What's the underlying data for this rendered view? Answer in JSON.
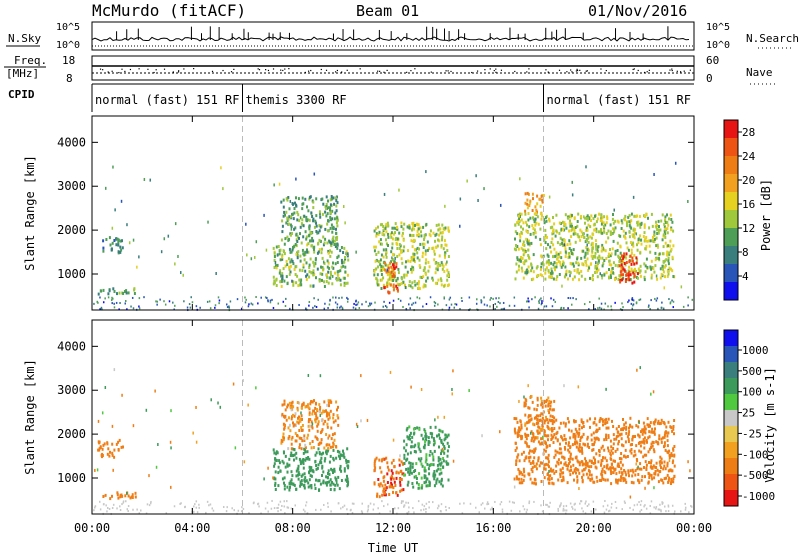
{
  "header": {
    "station": "McMurdo (fitACF)",
    "beam": "Beam 01",
    "date": "01/Nov/2016"
  },
  "aux_panels": {
    "nsky_label": "N.Sky",
    "nsky_ticks": [
      "10^5",
      "10^0"
    ],
    "nsearch_label": "N.Search",
    "nsearch_ticks": [
      "10^5",
      "10^0"
    ],
    "freq_label": "Freq.",
    "freq_unit": "[MHz]",
    "freq_ticks": [
      "18",
      "8"
    ],
    "nave_label": "Nave",
    "nave_ticks": [
      "60",
      "0"
    ],
    "cpid_label": "CPID"
  },
  "cpid_segments": [
    {
      "label": "normal (fast) 151 RF",
      "start_h": 0,
      "end_h": 6
    },
    {
      "label": "themis 3300 RF",
      "start_h": 6,
      "end_h": 18
    },
    {
      "label": "normal (fast) 151 RF",
      "start_h": 18,
      "end_h": 24
    }
  ],
  "x_axis": {
    "label": "Time UT",
    "ticks": [
      "00:00",
      "04:00",
      "08:00",
      "12:00",
      "16:00",
      "20:00",
      "00:00"
    ],
    "tick_hours": [
      0,
      4,
      8,
      12,
      16,
      20,
      24
    ]
  },
  "colors": {
    "power_scale": [
      "#1010ee",
      "#2a55b8",
      "#3a7e7e",
      "#4f9e58",
      "#9fc83c",
      "#e6d020",
      "#f2a020",
      "#ef7d15",
      "#ee5515",
      "#e81515"
    ],
    "velocity_scale": [
      "#e81515",
      "#ee5515",
      "#ef7d15",
      "#f2a020",
      "#e8c850",
      "#c8c8c8",
      "#50c840",
      "#3c9a5a",
      "#3a7e7e",
      "#2a55b8",
      "#1010ee"
    ]
  },
  "chart_data": [
    {
      "type": "heatmap",
      "title": "",
      "xlabel": "",
      "ylabel": "Slant Range [km]",
      "yticks": [
        "1000",
        "2000",
        "3000",
        "4000"
      ],
      "ylim": [
        180,
        4600
      ],
      "xlim_hours": [
        0,
        24
      ],
      "colorbar": {
        "label": "Power [dB]",
        "ticks": [
          "4",
          "8",
          "12",
          "16",
          "20",
          "24",
          "28"
        ],
        "range": [
          0,
          30
        ]
      },
      "echo_regions": [
        {
          "t": [
            0.4,
            1.2
          ],
          "r": [
            1500,
            1900
          ],
          "value": 8
        },
        {
          "t": [
            0.2,
            1.8
          ],
          "r": [
            550,
            700
          ],
          "value": 10
        },
        {
          "t": [
            7.2,
            10.2
          ],
          "r": [
            750,
            1700
          ],
          "value": 12
        },
        {
          "t": [
            7.5,
            9.8
          ],
          "r": [
            1700,
            2800
          ],
          "value": 10
        },
        {
          "t": [
            11.2,
            14.2
          ],
          "r": [
            700,
            2200
          ],
          "value": 14
        },
        {
          "t": [
            11.6,
            12.2
          ],
          "r": [
            600,
            1300
          ],
          "value": 24
        },
        {
          "t": [
            16.8,
            23.2
          ],
          "r": [
            900,
            2400
          ],
          "value": 14
        },
        {
          "t": [
            21.0,
            21.8
          ],
          "r": [
            800,
            1500
          ],
          "value": 28
        },
        {
          "t": [
            17.2,
            18.0
          ],
          "r": [
            2400,
            2900
          ],
          "value": 20
        }
      ]
    },
    {
      "type": "heatmap",
      "title": "",
      "xlabel": "Time UT",
      "ylabel": "Slant Range [km]",
      "yticks": [
        "1000",
        "2000",
        "3000",
        "4000"
      ],
      "ylim": [
        180,
        4600
      ],
      "xlim_hours": [
        0,
        24
      ],
      "colorbar": {
        "label": "Velocity [m s-1]",
        "ticks": [
          "1000",
          "500",
          "100",
          "25",
          "-25",
          "-100",
          "-500",
          "-1000"
        ],
        "range": [
          -1000,
          1000
        ]
      },
      "echo_regions": [
        {
          "t": [
            0.2,
            1.2
          ],
          "r": [
            1500,
            1900
          ],
          "value": -300
        },
        {
          "t": [
            0.2,
            1.8
          ],
          "r": [
            550,
            700
          ],
          "value": -300
        },
        {
          "t": [
            7.2,
            10.2
          ],
          "r": [
            750,
            1700
          ],
          "value": 300
        },
        {
          "t": [
            7.5,
            9.8
          ],
          "r": [
            1700,
            2800
          ],
          "value": -150
        },
        {
          "t": [
            11.2,
            12.4
          ],
          "r": [
            600,
            1500
          ],
          "value": -400
        },
        {
          "t": [
            12.4,
            14.2
          ],
          "r": [
            800,
            2200
          ],
          "value": 200
        },
        {
          "t": [
            16.8,
            23.2
          ],
          "r": [
            900,
            2400
          ],
          "value": -300
        },
        {
          "t": [
            17.2,
            18.4
          ],
          "r": [
            1800,
            2900
          ],
          "value": -200
        }
      ]
    }
  ]
}
